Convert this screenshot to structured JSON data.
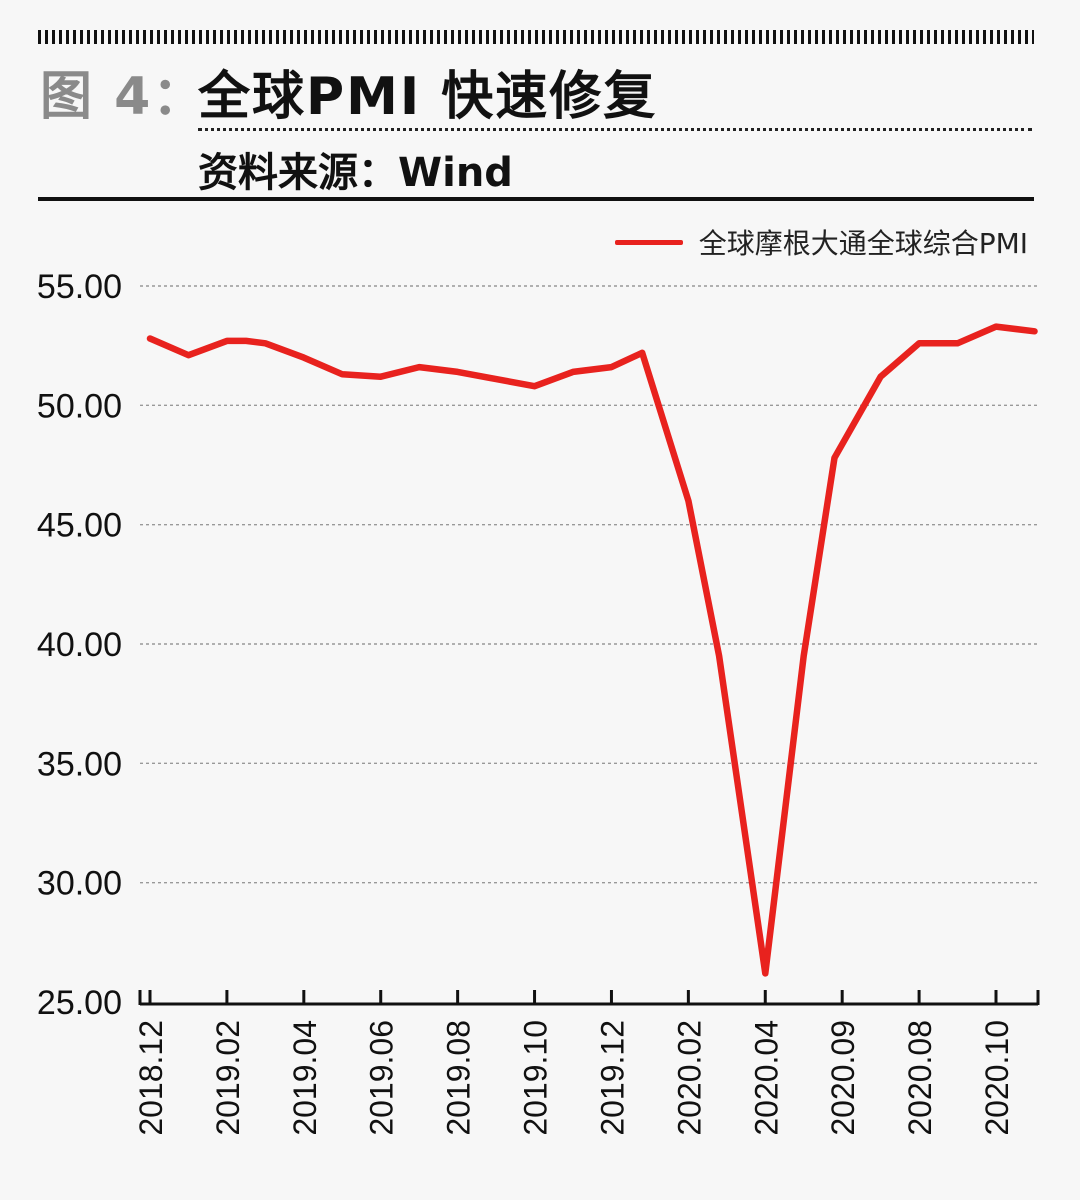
{
  "header": {
    "figure_label": "图 4：",
    "title": "全球PMI 快速修复",
    "source": "资料来源：Wind"
  },
  "colors": {
    "line": "#e8221e",
    "grid": "#999999",
    "axis": "#111111"
  },
  "chart_data": {
    "type": "line",
    "ylim": [
      25,
      55
    ],
    "yticks": [
      "55.00",
      "50.00",
      "45.00",
      "40.00",
      "35.00",
      "30.00",
      "25.00"
    ],
    "ytick_values": [
      55,
      50,
      45,
      40,
      35,
      30,
      25
    ],
    "categories": [
      "2018.12",
      "2019.02",
      "2019.04",
      "2019.06",
      "2019.08",
      "2019.10",
      "2019.12",
      "2020.02",
      "2020.04",
      "2020.09",
      "2020.08",
      "2020.10"
    ],
    "grid": true,
    "legend_position": "top-right",
    "series": [
      {
        "name": "全球摩根大通全球综合PMI",
        "x": [
          0,
          0.5,
          1,
          1.25,
          1.5,
          2,
          2.5,
          3,
          3.5,
          4,
          4.5,
          5,
          5.5,
          6,
          6.4,
          7,
          7.4,
          8,
          8.5,
          8.9,
          9.5,
          10,
          10.5,
          11,
          11.5
        ],
        "values": [
          52.8,
          52.1,
          52.7,
          52.7,
          52.6,
          52.0,
          51.3,
          51.2,
          51.6,
          51.4,
          51.1,
          50.8,
          51.4,
          51.6,
          52.2,
          46.0,
          39.5,
          26.2,
          39.5,
          47.8,
          51.2,
          52.6,
          52.6,
          53.3,
          53.1
        ]
      }
    ]
  }
}
